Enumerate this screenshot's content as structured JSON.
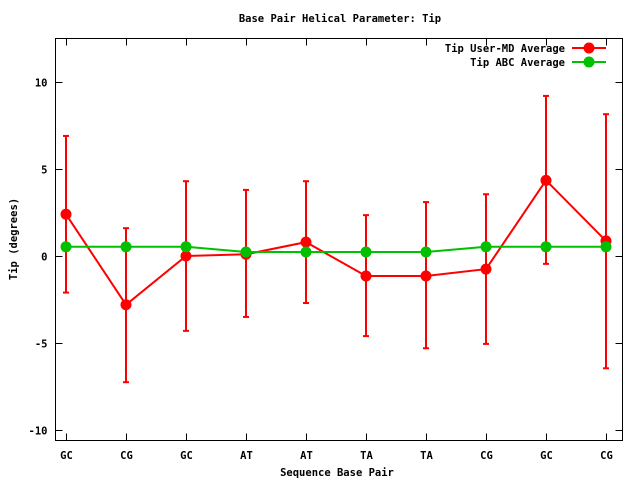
{
  "chart_data": {
    "type": "line",
    "title": "Base Pair Helical Parameter: Tip",
    "xlabel": "Sequence Base Pair",
    "ylabel": "Tip (degrees)",
    "categories": [
      "GC",
      "CG",
      "GC",
      "AT",
      "AT",
      "TA",
      "TA",
      "CG",
      "GC",
      "CG"
    ],
    "ylim": [
      -10.6,
      12.5
    ],
    "yticks": [
      -10,
      -5,
      0,
      5,
      10
    ],
    "ytick_labels": [
      "-10",
      "-5",
      "0",
      "5",
      "10"
    ],
    "grid": false,
    "legend_position": "top-right",
    "series": [
      {
        "name": "Tip User-MD Average",
        "color": "#ff0000",
        "values": [
          2.4,
          -2.8,
          0.0,
          0.1,
          0.8,
          -1.15,
          -1.15,
          -0.75,
          4.35,
          0.87
        ],
        "error_low": [
          -2.1,
          -7.25,
          -4.3,
          -3.5,
          -2.7,
          -4.6,
          -5.3,
          -5.05,
          -0.45,
          -6.45
        ],
        "error_high": [
          6.9,
          1.6,
          4.3,
          3.8,
          4.3,
          2.35,
          3.1,
          3.55,
          9.2,
          8.15
        ]
      },
      {
        "name": "Tip ABC Average",
        "color": "#00c000",
        "values": [
          0.53,
          0.53,
          0.53,
          0.23,
          0.23,
          0.23,
          0.23,
          0.53,
          0.53,
          0.53
        ]
      }
    ]
  }
}
